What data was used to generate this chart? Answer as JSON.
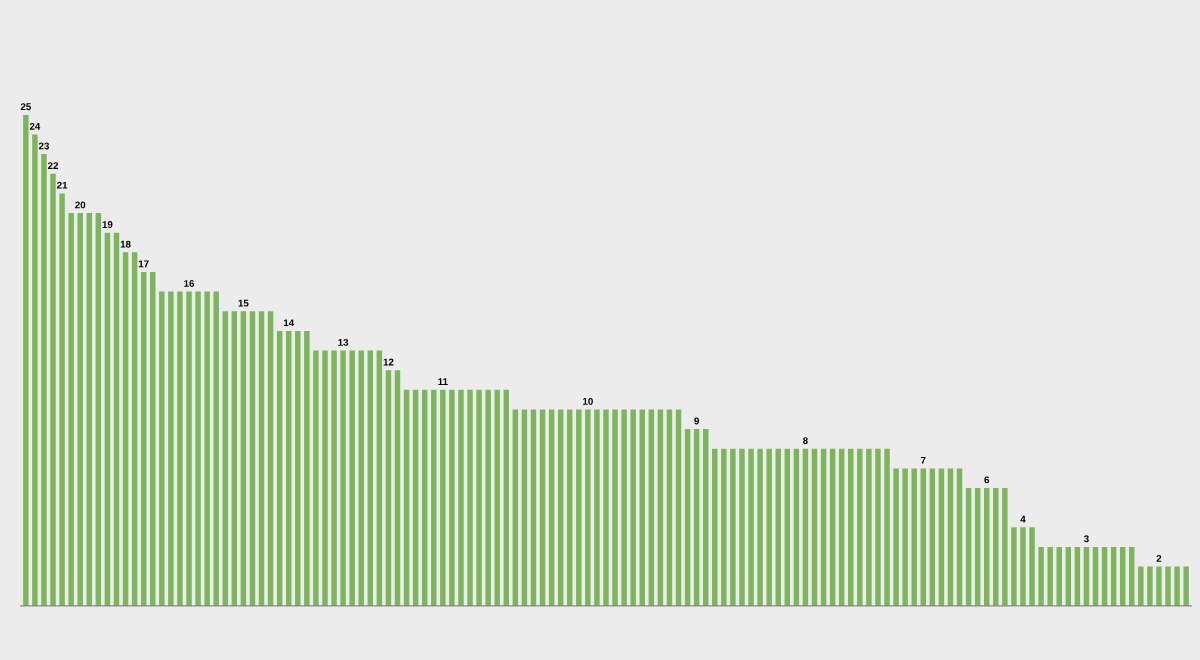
{
  "chart_data": {
    "type": "bar",
    "categories": [
      null,
      null,
      null,
      null,
      null,
      null,
      null,
      null,
      null,
      null,
      null,
      null,
      null,
      null,
      null,
      null,
      null,
      null,
      null,
      null,
      null,
      null,
      null,
      null,
      null,
      null,
      null,
      null,
      null,
      null,
      null,
      null,
      null,
      null,
      null,
      null,
      null,
      null,
      null,
      null,
      null,
      null,
      null,
      null,
      null,
      null,
      null,
      null,
      null,
      null,
      null,
      null,
      null,
      null,
      null,
      null,
      null,
      null,
      null,
      null,
      null,
      null,
      null,
      null,
      null,
      null,
      null,
      null,
      null,
      null,
      null,
      null,
      null,
      null,
      null,
      null,
      null,
      null,
      null,
      null,
      null,
      null,
      null,
      null,
      null,
      null,
      null,
      null,
      null,
      null,
      null,
      null,
      null,
      null,
      null,
      null,
      null,
      null,
      null,
      null,
      null,
      null,
      null,
      null,
      null,
      null,
      null,
      null,
      null,
      null,
      null,
      null,
      null,
      null,
      null,
      null,
      null,
      null,
      null,
      null,
      null,
      null,
      null,
      null,
      null,
      null,
      null,
      null,
      null
    ],
    "values": [
      25,
      24,
      23,
      22,
      21,
      20,
      20,
      20,
      20,
      19,
      19,
      18,
      18,
      17,
      17,
      16,
      16,
      16,
      16,
      16,
      16,
      16,
      15,
      15,
      15,
      15,
      15,
      15,
      14,
      14,
      14,
      14,
      13,
      13,
      13,
      13,
      13,
      13,
      13,
      13,
      12,
      12,
      11,
      11,
      11,
      11,
      11,
      11,
      11,
      11,
      11,
      11,
      11,
      11,
      10,
      10,
      10,
      10,
      10,
      10,
      10,
      10,
      10,
      10,
      10,
      10,
      10,
      10,
      10,
      10,
      10,
      10,
      10,
      9,
      9,
      9,
      8,
      8,
      8,
      8,
      8,
      8,
      8,
      8,
      8,
      8,
      8,
      8,
      8,
      8,
      8,
      8,
      8,
      8,
      8,
      8,
      7,
      7,
      7,
      7,
      7,
      7,
      7,
      7,
      6,
      6,
      6,
      6,
      6,
      4,
      4,
      4,
      3,
      3,
      3,
      3,
      3,
      3,
      3,
      3,
      3,
      3,
      3,
      2,
      2,
      2,
      2,
      2,
      2
    ],
    "value_labels": [
      "25",
      "24",
      "23",
      "22",
      "21",
      null,
      "20",
      null,
      null,
      "19",
      null,
      "18",
      null,
      "17",
      null,
      null,
      null,
      null,
      "16",
      null,
      null,
      null,
      null,
      null,
      "15",
      null,
      null,
      null,
      null,
      "14",
      null,
      null,
      null,
      null,
      null,
      "13",
      null,
      null,
      null,
      null,
      "12",
      null,
      null,
      null,
      null,
      null,
      "11",
      null,
      null,
      null,
      null,
      null,
      null,
      null,
      null,
      null,
      null,
      null,
      null,
      null,
      null,
      null,
      "10",
      null,
      null,
      null,
      null,
      null,
      null,
      null,
      null,
      null,
      null,
      null,
      "9",
      null,
      null,
      null,
      null,
      null,
      null,
      null,
      null,
      null,
      null,
      null,
      "8",
      null,
      null,
      null,
      null,
      null,
      null,
      null,
      null,
      null,
      null,
      null,
      null,
      "7",
      null,
      null,
      null,
      null,
      null,
      null,
      "6",
      null,
      null,
      null,
      "4",
      null,
      null,
      null,
      null,
      null,
      null,
      "3",
      null,
      null,
      null,
      null,
      null,
      null,
      null,
      "2",
      null,
      null,
      null
    ],
    "color": "#7cb55b"
  }
}
